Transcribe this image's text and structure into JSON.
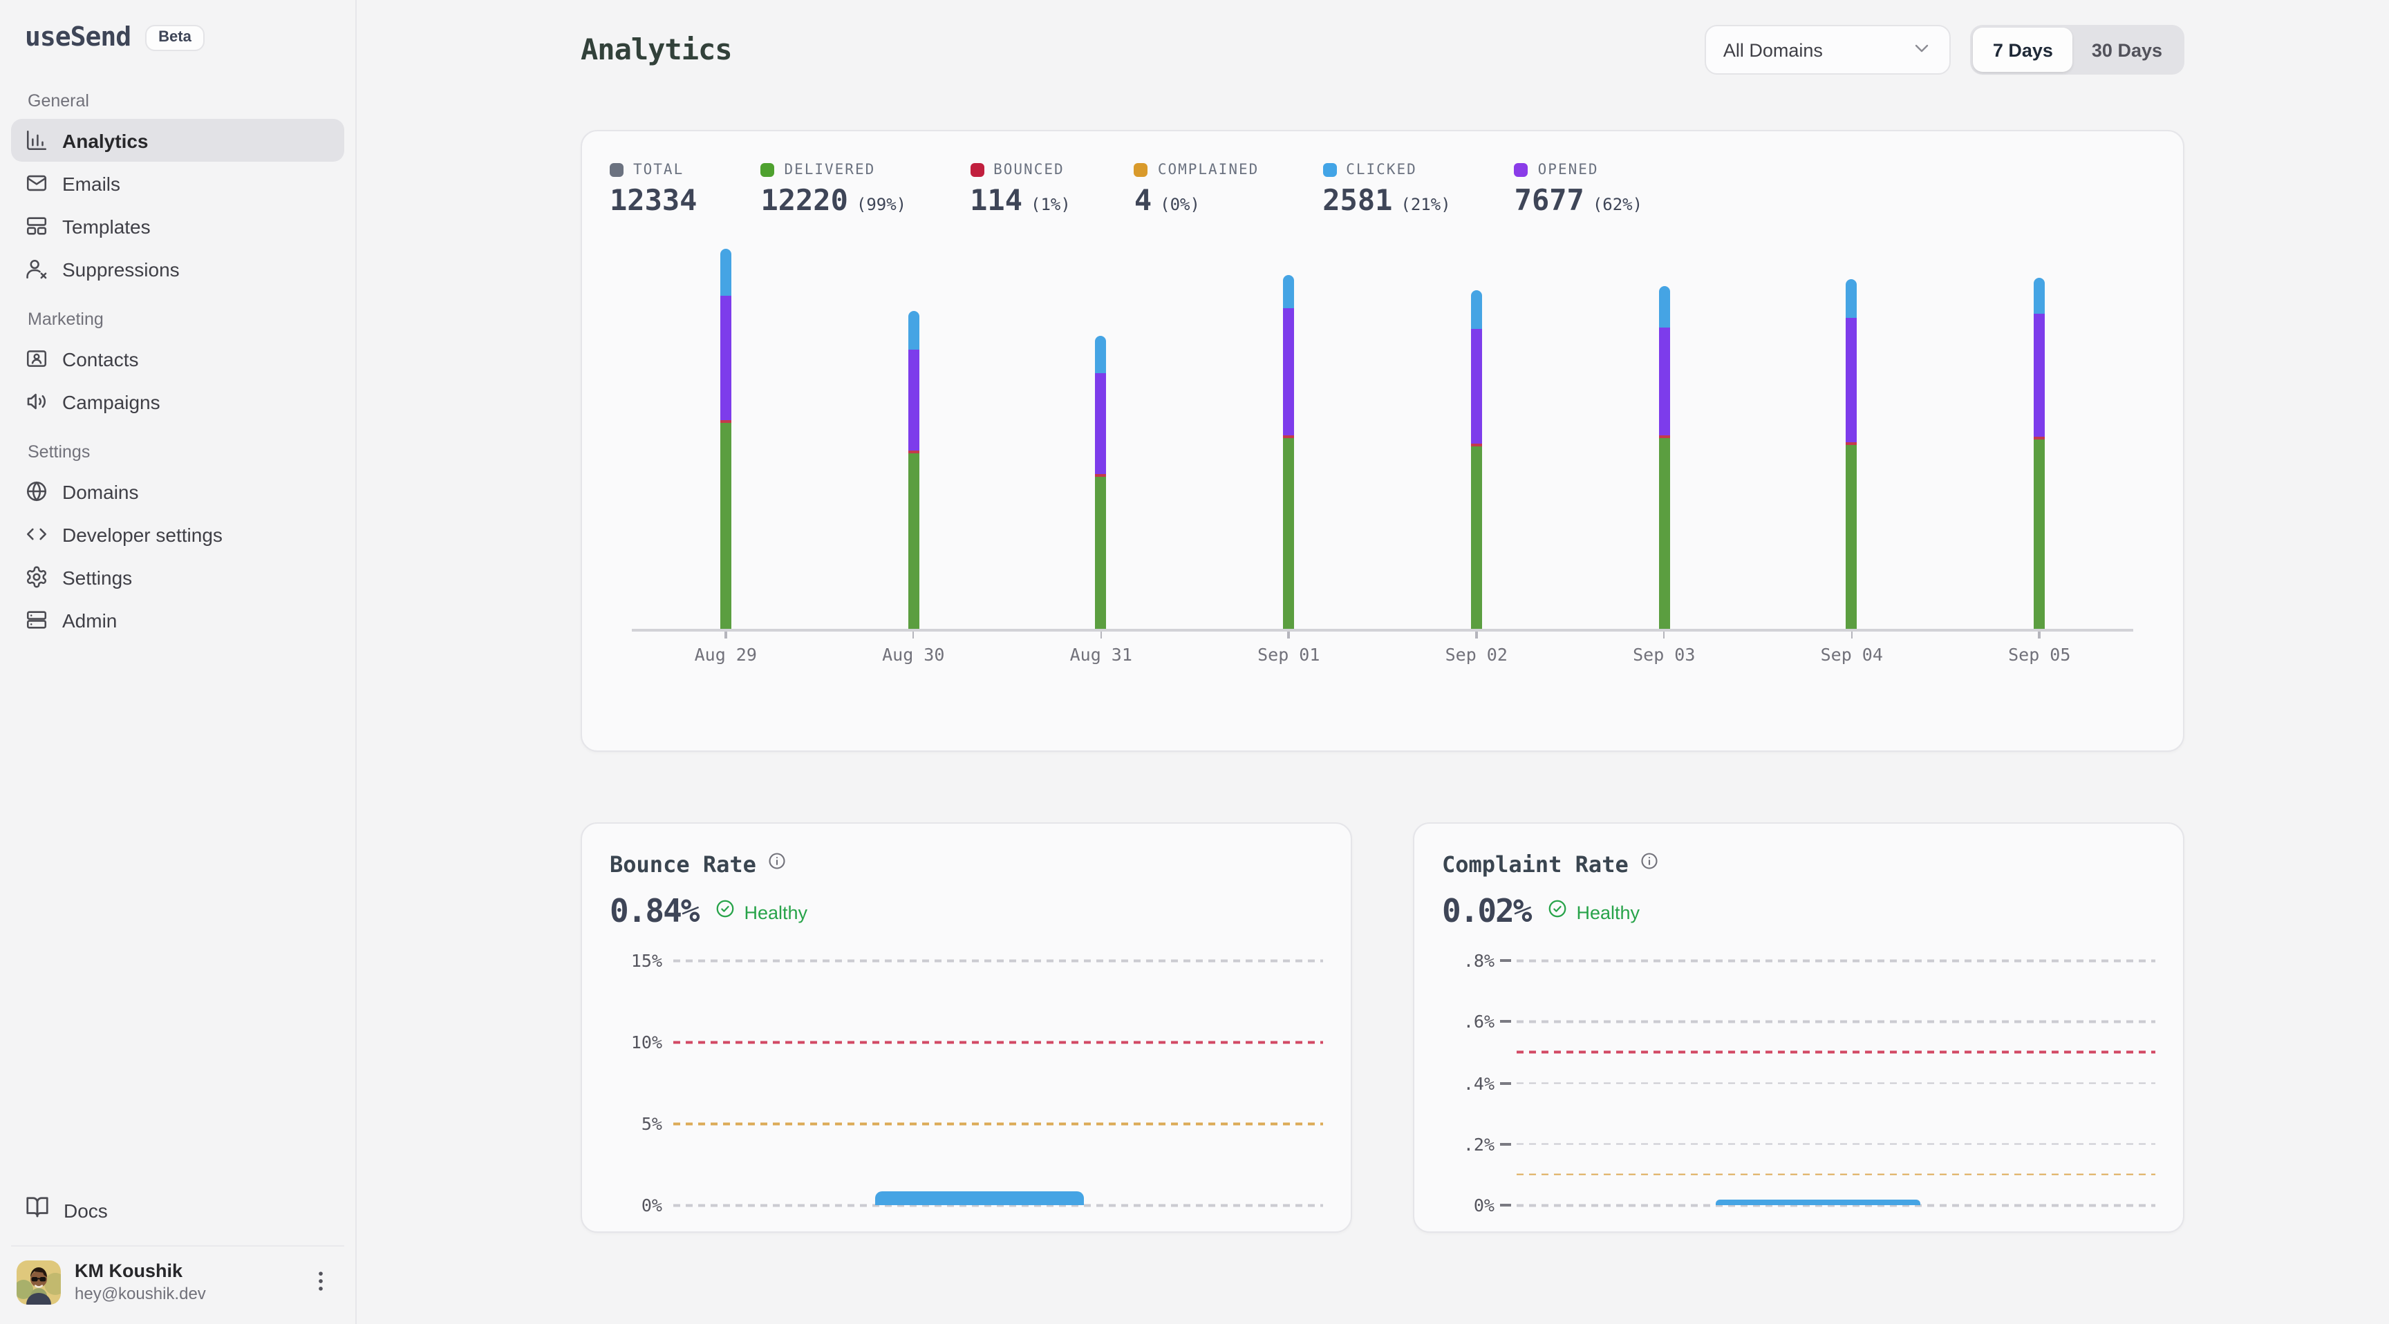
{
  "app": {
    "name": "useSend",
    "badge": "Beta"
  },
  "sidebar": {
    "sections": [
      {
        "label": "General",
        "items": [
          {
            "label": "Analytics",
            "icon": "bar-chart-icon",
            "active": true
          },
          {
            "label": "Emails",
            "icon": "mail-icon",
            "active": false
          },
          {
            "label": "Templates",
            "icon": "templates-icon",
            "active": false
          },
          {
            "label": "Suppressions",
            "icon": "user-x-icon",
            "active": false
          }
        ]
      },
      {
        "label": "Marketing",
        "items": [
          {
            "label": "Contacts",
            "icon": "contact-card-icon",
            "active": false
          },
          {
            "label": "Campaigns",
            "icon": "megaphone-icon",
            "active": false
          }
        ]
      },
      {
        "label": "Settings",
        "items": [
          {
            "label": "Domains",
            "icon": "globe-icon",
            "active": false
          },
          {
            "label": "Developer settings",
            "icon": "code-icon",
            "active": false
          },
          {
            "label": "Settings",
            "icon": "gear-icon",
            "active": false
          },
          {
            "label": "Admin",
            "icon": "server-icon",
            "active": false
          }
        ]
      }
    ],
    "docs": {
      "label": "Docs"
    },
    "profile": {
      "name": "KM Koushik",
      "email": "hey@koushik.dev"
    }
  },
  "header": {
    "title": "Analytics",
    "domain_filter": "All Domains",
    "ranges": [
      "7 Days",
      "30 Days"
    ],
    "active_range": "7 Days"
  },
  "overview": {
    "stats": [
      {
        "key": "total",
        "label": "TOTAL",
        "value": "12334",
        "pct": "",
        "color": "#6b7280"
      },
      {
        "key": "delivered",
        "label": "DELIVERED",
        "value": "12220",
        "pct": "(99%)",
        "color": "#4ea12f"
      },
      {
        "key": "bounced",
        "label": "BOUNCED",
        "value": "114",
        "pct": "(1%)",
        "color": "#c11f3e"
      },
      {
        "key": "complained",
        "label": "COMPLAINED",
        "value": "4",
        "pct": "(0%)",
        "color": "#d99a2b"
      },
      {
        "key": "clicked",
        "label": "CLICKED",
        "value": "2581",
        "pct": "(21%)",
        "color": "#42a4e6"
      },
      {
        "key": "opened",
        "label": "OPENED",
        "value": "7677",
        "pct": "(62%)",
        "color": "#8a3ce8"
      }
    ]
  },
  "cards": {
    "bounce": {
      "title": "Bounce Rate",
      "value": "0.84%",
      "status": "Healthy"
    },
    "complaint": {
      "title": "Complaint Rate",
      "value": "0.02%",
      "status": "Healthy"
    }
  },
  "chart_data": [
    {
      "id": "email-volume",
      "type": "bar",
      "stacked": true,
      "grid": false,
      "title": "Email volume by day (stacked: delivered, bounced, opened, clicked)",
      "categories": [
        "Aug 29",
        "Aug 30",
        "Aug 31",
        "Sep 01",
        "Sep 02",
        "Sep 03",
        "Sep 04",
        "Sep 05"
      ],
      "series": [
        {
          "name": "Delivered",
          "color": "#5b9e40",
          "values": [
            1715,
            1457,
            1265,
            1584,
            1520,
            1584,
            1526,
            1569
          ]
        },
        {
          "name": "Bounced",
          "color": "#c43a4b",
          "values": [
            16,
            14,
            13,
            15,
            14,
            14,
            14,
            14
          ]
        },
        {
          "name": "Opened",
          "color": "#7d3ceb",
          "values": [
            1036,
            837,
            842,
            1053,
            952,
            892,
            1036,
            1029
          ]
        },
        {
          "name": "Clicked",
          "color": "#45a4e4",
          "values": [
            380,
            325,
            301,
            285,
            320,
            349,
            325,
            296
          ]
        }
      ],
      "xlabel": "",
      "ylabel": "",
      "legend_position": "top-stats-row"
    },
    {
      "id": "bounce-rate",
      "type": "bar",
      "title": "Bounce Rate",
      "ymax": 15,
      "ticks": false,
      "gridlines": [
        {
          "label": "15%",
          "value": 15,
          "color": "gray"
        },
        {
          "label": "10%",
          "value": 10,
          "color": "red"
        },
        {
          "label": "5%",
          "value": 5,
          "color": "orange"
        },
        {
          "label": "0%",
          "value": 0,
          "color": "gray"
        }
      ],
      "bar": {
        "value": 0.84,
        "start_frac": 0.31,
        "width_frac": 0.32,
        "color": "#45a4e4"
      }
    },
    {
      "id": "complaint-rate",
      "type": "bar",
      "title": "Complaint Rate",
      "ymax": 0.8,
      "ticks": true,
      "gridlines": [
        {
          "label": ".8%",
          "value": 0.8,
          "color": "gray"
        },
        {
          "label": ".6%",
          "value": 0.6,
          "color": "gray"
        },
        {
          "label": "",
          "value": 0.5,
          "color": "red"
        },
        {
          "label": ".4%",
          "value": 0.4,
          "color": "gray"
        },
        {
          "label": ".2%",
          "value": 0.2,
          "color": "gray"
        },
        {
          "label": "",
          "value": 0.1,
          "color": "orange"
        },
        {
          "label": "0%",
          "value": 0,
          "color": "gray"
        }
      ],
      "bar": {
        "value": 0.02,
        "start_frac": 0.31,
        "width_frac": 0.32,
        "color": "#45a4e4"
      }
    }
  ]
}
